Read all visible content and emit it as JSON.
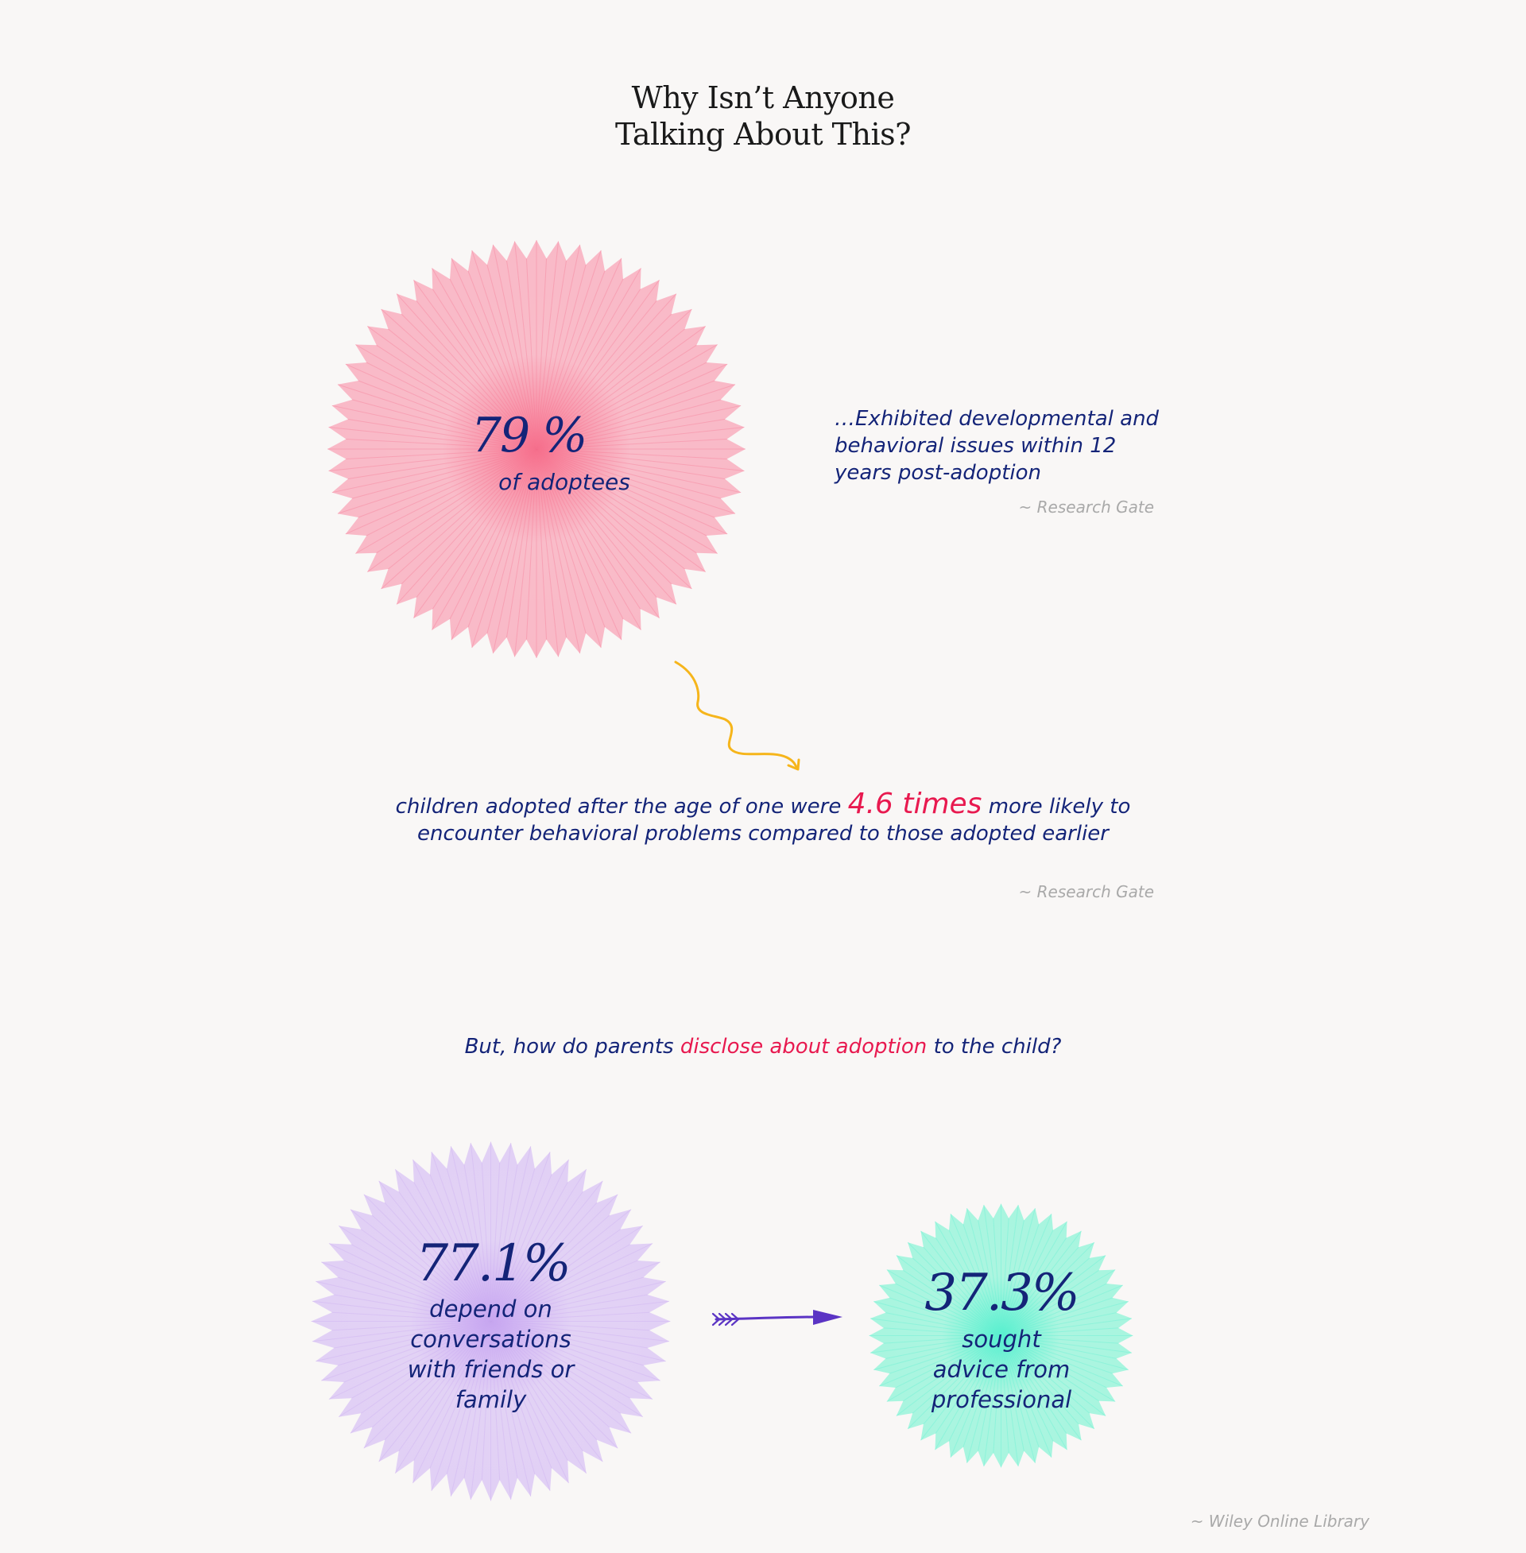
{
  "title": {
    "line1": "Why Isn’t Anyone",
    "line2": "Talking About This?"
  },
  "stat1": {
    "value": "79 %",
    "caption": "of adoptees",
    "description": "…Exhibited developmental and behavioral issues within 12 years post-adoption",
    "source": "~ Research Gate",
    "color": "#f9b9c7",
    "center_color": "#f7738f"
  },
  "stat2": {
    "before": "children adopted after the age of one were",
    "highlight": "4.6 times",
    "after": "more likely to encounter behavioral problems compared to those adopted earlier",
    "source": "~ Research Gate"
  },
  "question": {
    "before": "But, how do parents",
    "highlight": "disclose about adoption",
    "after": "to the child?"
  },
  "stat3": {
    "value": "77.1%",
    "caption": "depend on conversations with friends or family",
    "color": "#e1d0f5",
    "center_color": "#c9a8f2"
  },
  "stat4": {
    "value": "37.3%",
    "caption": "sought advice from professional",
    "color": "#a8f5df",
    "center_color": "#5df0d0"
  },
  "source_bottom": "~ Wiley Online Library",
  "icons": {
    "wavy_arrow": "wavy-arrow-icon",
    "feather_arrow": "feather-arrow-icon"
  }
}
